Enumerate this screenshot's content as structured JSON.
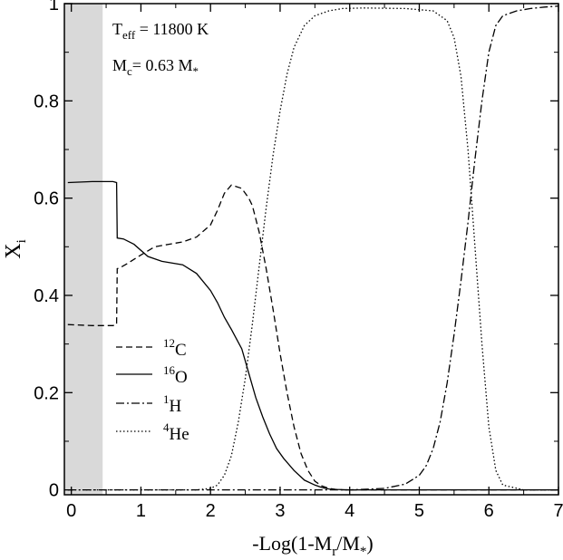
{
  "chart_data": {
    "type": "line",
    "title": "",
    "xlabel": {
      "prefix": "-Log(1-M",
      "sub": "r",
      "mid": "/M",
      "sub2": "*",
      "suffix": ")"
    },
    "ylabel": {
      "main": "X",
      "sub": "i"
    },
    "xlim": [
      -0.1,
      7
    ],
    "ylim": [
      -0.01,
      1.0
    ],
    "xticks": [
      0,
      1,
      2,
      3,
      4,
      5,
      6,
      7
    ],
    "xtick_labels": [
      "0",
      "1",
      "2",
      "3",
      "4",
      "5",
      "6",
      "7"
    ],
    "yticks": [
      0,
      0.2,
      0.4,
      0.6,
      0.8,
      1
    ],
    "ytick_labels": [
      "0",
      "0.2",
      "0.4",
      "0.6",
      "0.8",
      "1"
    ],
    "grid": false,
    "legend_position": "lower-left",
    "shaded_region": {
      "x": [
        -0.1,
        0.45
      ],
      "color": "#d9d9d9"
    },
    "annotations": [
      {
        "main": "T",
        "sub": "eff",
        "rest": " = 11800 K"
      },
      {
        "main": "M",
        "sub": "c",
        "rest": "= 0.63 M",
        "sub2": "*"
      }
    ],
    "series": [
      {
        "name": "12C",
        "sup": "12",
        "label": "C",
        "style": "dashed",
        "x": [
          -0.05,
          0.3,
          0.6,
          0.65,
          0.66,
          0.7,
          0.8,
          1.0,
          1.2,
          1.4,
          1.6,
          1.8,
          2.0,
          2.1,
          2.2,
          2.3,
          2.45,
          2.55,
          2.6,
          2.7,
          2.8,
          2.9,
          3.0,
          3.1,
          3.2,
          3.3,
          3.4,
          3.5,
          3.6,
          3.7,
          3.8,
          3.9,
          4.0,
          4.5,
          5.0,
          5.5,
          6.0,
          6.5,
          7.0
        ],
        "y": [
          0.34,
          0.338,
          0.338,
          0.34,
          0.455,
          0.457,
          0.465,
          0.483,
          0.5,
          0.505,
          0.51,
          0.52,
          0.545,
          0.575,
          0.61,
          0.627,
          0.62,
          0.6,
          0.585,
          0.53,
          0.455,
          0.37,
          0.28,
          0.2,
          0.13,
          0.075,
          0.04,
          0.018,
          0.008,
          0.003,
          0.001,
          0.0,
          0.0,
          0.0,
          0.0,
          0.0,
          0.0,
          0.0,
          0.0
        ]
      },
      {
        "name": "16O",
        "sup": "16",
        "label": "O",
        "style": "solid",
        "x": [
          -0.05,
          0.3,
          0.6,
          0.65,
          0.66,
          0.75,
          0.9,
          1.1,
          1.3,
          1.6,
          1.8,
          2.0,
          2.1,
          2.2,
          2.3,
          2.45,
          2.55,
          2.65,
          2.75,
          2.85,
          2.95,
          3.05,
          3.2,
          3.35,
          3.5,
          3.6,
          3.7,
          3.8,
          4.0,
          4.5,
          5.0,
          6.0,
          7.0
        ],
        "y": [
          0.632,
          0.634,
          0.634,
          0.632,
          0.518,
          0.516,
          0.505,
          0.48,
          0.47,
          0.463,
          0.445,
          0.41,
          0.385,
          0.355,
          0.33,
          0.29,
          0.24,
          0.19,
          0.15,
          0.115,
          0.085,
          0.065,
          0.04,
          0.02,
          0.01,
          0.005,
          0.002,
          0.001,
          0.0,
          0.0,
          0.0,
          0.0,
          0.0
        ]
      },
      {
        "name": "1H",
        "sup": "1",
        "label": "H",
        "style": "dashdot",
        "x": [
          -0.05,
          1.0,
          2.0,
          3.0,
          4.0,
          4.5,
          4.8,
          5.0,
          5.1,
          5.2,
          5.3,
          5.4,
          5.5,
          5.6,
          5.7,
          5.8,
          5.9,
          6.0,
          6.1,
          6.2,
          6.4,
          6.6,
          6.8,
          7.0
        ],
        "y": [
          0.0,
          0.0,
          0.0,
          0.0,
          0.0,
          0.003,
          0.012,
          0.03,
          0.05,
          0.085,
          0.14,
          0.22,
          0.32,
          0.43,
          0.55,
          0.68,
          0.8,
          0.9,
          0.955,
          0.975,
          0.985,
          0.99,
          0.993,
          0.995
        ]
      },
      {
        "name": "4He",
        "sup": "4",
        "label": "He",
        "style": "dotted",
        "x": [
          -0.05,
          1.0,
          1.8,
          2.0,
          2.1,
          2.2,
          2.3,
          2.4,
          2.5,
          2.6,
          2.7,
          2.8,
          2.9,
          3.0,
          3.1,
          3.2,
          3.35,
          3.5,
          3.7,
          3.9,
          4.2,
          4.8,
          5.2,
          5.4,
          5.5,
          5.6,
          5.7,
          5.8,
          5.9,
          6.0,
          6.1,
          6.2,
          6.5,
          7.0
        ],
        "y": [
          0.0,
          0.0,
          0.0,
          0.003,
          0.01,
          0.03,
          0.07,
          0.14,
          0.23,
          0.34,
          0.46,
          0.58,
          0.69,
          0.78,
          0.855,
          0.91,
          0.955,
          0.975,
          0.985,
          0.99,
          0.991,
          0.99,
          0.985,
          0.965,
          0.93,
          0.85,
          0.7,
          0.5,
          0.3,
          0.13,
          0.04,
          0.01,
          0.0,
          0.0
        ]
      }
    ]
  }
}
